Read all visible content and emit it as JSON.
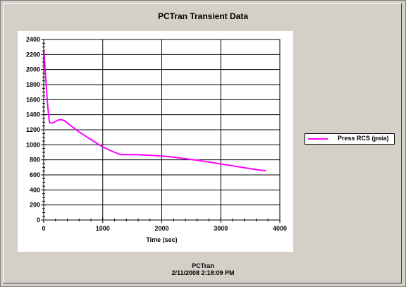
{
  "chart_data": {
    "type": "line",
    "title": "PCTran Transient Data",
    "xlabel": "Time (sec)",
    "ylabel": "",
    "xlim": [
      0,
      4000
    ],
    "ylim": [
      0,
      2400
    ],
    "x_ticks": [
      0,
      1000,
      2000,
      3000,
      4000
    ],
    "y_ticks": [
      0,
      200,
      400,
      600,
      800,
      1000,
      1200,
      1400,
      1600,
      1800,
      2000,
      2200,
      2400
    ],
    "grid": true,
    "legend_position": "right",
    "series": [
      {
        "name": "Press RCS (psia)",
        "color": "#ff00ff",
        "x": [
          0,
          10,
          20,
          35,
          50,
          65,
          80,
          95,
          110,
          150,
          200,
          250,
          300,
          350,
          400,
          600,
          800,
          1000,
          1200,
          1300,
          1400,
          1600,
          1800,
          2000,
          2200,
          2400,
          2600,
          2800,
          3000,
          3200,
          3400,
          3600,
          3760
        ],
        "y": [
          2250,
          2180,
          2040,
          1880,
          1700,
          1550,
          1420,
          1310,
          1290,
          1290,
          1310,
          1330,
          1335,
          1320,
          1290,
          1170,
          1070,
          970,
          900,
          870,
          870,
          868,
          860,
          850,
          835,
          815,
          795,
          770,
          745,
          720,
          695,
          670,
          655
        ]
      }
    ]
  },
  "footer": {
    "line1": "PCTran",
    "line2": "2/11/2008 2:18:09 PM"
  }
}
